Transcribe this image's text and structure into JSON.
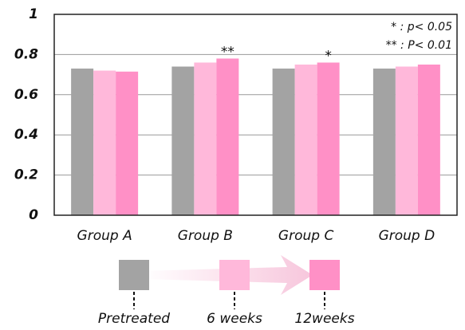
{
  "chart_data": {
    "type": "bar",
    "categories": [
      "Group A",
      "Group B",
      "Group C",
      "Group D"
    ],
    "series": [
      {
        "name": "Pretreated",
        "color": "#a3a3a3",
        "values": [
          0.73,
          0.74,
          0.73,
          0.73
        ]
      },
      {
        "name": "6 weeks",
        "color": "#ffb8da",
        "values": [
          0.72,
          0.76,
          0.75,
          0.74
        ]
      },
      {
        "name": "12weeks",
        "color": "#ff90c6",
        "values": [
          0.715,
          0.78,
          0.76,
          0.75
        ]
      }
    ],
    "ylim": [
      0,
      1
    ],
    "yticks": [
      0,
      0.2,
      0.4,
      0.6,
      0.8,
      1
    ],
    "grid": true,
    "annotations": [
      {
        "text": "**",
        "category": "Group B",
        "series": "12weeks"
      },
      {
        "text": "*",
        "category": "Group C",
        "series": "12weeks"
      }
    ],
    "significance_legend": [
      "* : p< 0.05",
      "** : P< 0.01"
    ]
  }
}
